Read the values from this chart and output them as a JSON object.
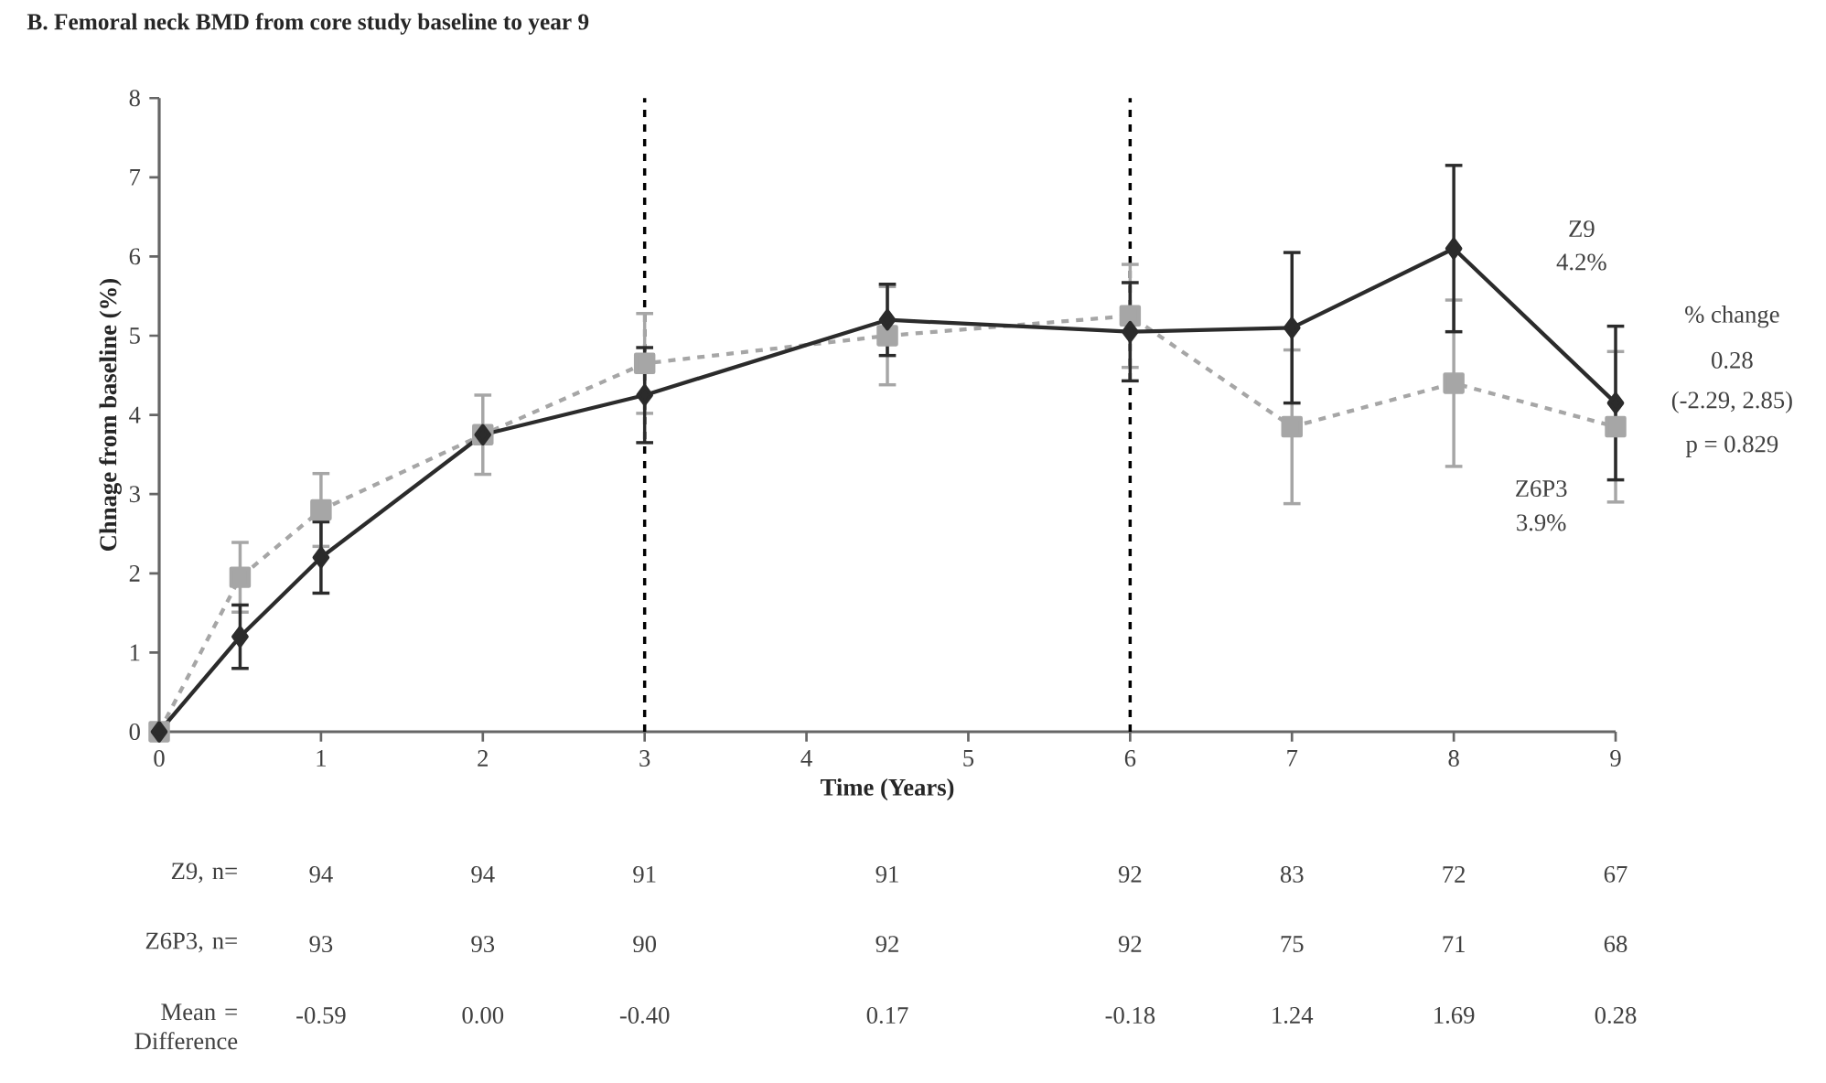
{
  "chart_data": [
    {
      "type": "line",
      "title": "B. Femoral neck BMD from core study baseline to year 9",
      "xlabel": "Time (Years)",
      "ylabel": "Chnage from baseline (%)",
      "x": [
        0,
        0.5,
        1,
        2,
        3,
        4.5,
        6,
        7,
        8,
        9
      ],
      "xlim": [
        0,
        9
      ],
      "xticks": [
        0,
        1,
        2,
        3,
        4,
        5,
        6,
        7,
        8,
        9
      ],
      "ylim": [
        0,
        8
      ],
      "yticks": [
        0,
        1,
        2,
        3,
        4,
        5,
        6,
        7,
        8
      ],
      "series": [
        {
          "color": "#2b2b2b",
          "marker": "diamond",
          "line_style": "solid",
          "values": [
            0,
            1.2,
            2.2,
            3.75,
            4.25,
            5.2,
            5.05,
            5.1,
            6.1,
            4.15
          ],
          "errors": [
            null,
            0.4,
            0.45,
            null,
            0.6,
            0.45,
            0.62,
            0.95,
            1.05,
            0.97
          ]
        },
        {
          "color": "#a6a6a6",
          "marker": "square",
          "line_style": "dashed",
          "values": [
            0,
            1.95,
            2.8,
            3.75,
            4.65,
            5.0,
            5.25,
            3.85,
            4.4,
            3.85
          ],
          "errors": [
            null,
            0.44,
            0.46,
            0.5,
            0.63,
            0.62,
            0.65,
            0.97,
            1.05,
            0.95
          ]
        }
      ],
      "ref_lines": [
        {
          "axis": "x",
          "value": 3,
          "line_style": "dashed",
          "color": "#000000"
        },
        {
          "axis": "x",
          "value": 6,
          "line_style": "dashed",
          "color": "#000000"
        }
      ],
      "annotations": [
        "Z9",
        "4.2%",
        "% change",
        "0.28",
        "(-2.29, 2.85)",
        "p = 0.829",
        "Z6P3",
        "3.9%",
        "Z9, n=",
        "94",
        "94",
        "91",
        "91",
        "92",
        "83",
        "72",
        "67",
        "Z6P3, n=",
        "93",
        "93",
        "90",
        "92",
        "92",
        "75",
        "71",
        "68",
        "Mean = Difference",
        "-0.59",
        "0.00",
        "-0.40",
        "0.17",
        "-0.18",
        "1.24",
        "1.69",
        "0.28"
      ]
    }
  ]
}
